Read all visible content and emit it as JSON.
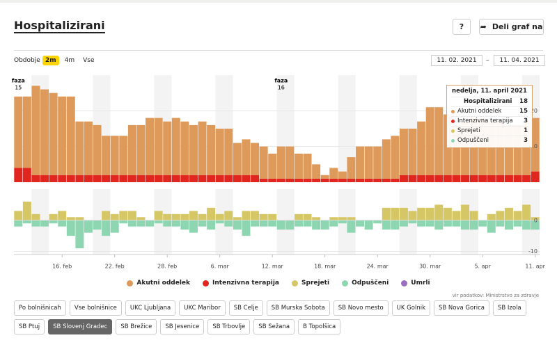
{
  "header": {
    "title": "Hospitalizirani",
    "help": "?",
    "share": "Deli graf na"
  },
  "controls": {
    "period_label": "Obdobje",
    "periods": [
      "2m",
      "4m",
      "Vse"
    ],
    "active_period": "2m",
    "date_from": "11. 02. 2021",
    "date_sep": "–",
    "date_to": "11. 04. 2021"
  },
  "chart_data": [
    {
      "type": "bar",
      "stacked": true,
      "ylim": [
        0,
        30
      ],
      "yticks": [
        10,
        20
      ],
      "grid": true,
      "annotations": [
        {
          "text": "faza",
          "label": "15"
        },
        {
          "text": "faza",
          "label": "16"
        }
      ],
      "series": [
        {
          "name": "Akutni oddelek",
          "color": "#de9a5a",
          "values": [
            20,
            20,
            25,
            24,
            23,
            22,
            22,
            15,
            15,
            14,
            11,
            11,
            11,
            14,
            14,
            16,
            16,
            15,
            16,
            15,
            14,
            15,
            14,
            13,
            13,
            9,
            10,
            9,
            9,
            7,
            9,
            9,
            7,
            7,
            4,
            1,
            3,
            2,
            6,
            9,
            9,
            9,
            11,
            12,
            13,
            13,
            15,
            19,
            19,
            17,
            14,
            15,
            16,
            16,
            15,
            15,
            14,
            14,
            15,
            15
          ]
        },
        {
          "name": "Intenzivna terapija",
          "color": "#e1261f",
          "values": [
            4,
            4,
            2,
            2,
            2,
            2,
            2,
            2,
            2,
            2,
            2,
            2,
            2,
            2,
            2,
            2,
            2,
            2,
            2,
            2,
            2,
            2,
            2,
            2,
            2,
            2,
            2,
            2,
            1,
            1,
            1,
            1,
            1,
            1,
            1,
            1,
            1,
            1,
            1,
            1,
            1,
            1,
            1,
            1,
            2,
            2,
            2,
            2,
            2,
            2,
            2,
            2,
            2,
            2,
            2,
            2,
            2,
            2,
            2,
            3
          ]
        }
      ]
    },
    {
      "type": "bar",
      "stacked": false,
      "ylim": [
        -11,
        10
      ],
      "yticks": [
        0,
        -10
      ],
      "grid": true,
      "categories": [
        null,
        null,
        null,
        null,
        null,
        "16. feb",
        null,
        null,
        null,
        null,
        null,
        "22. feb",
        null,
        null,
        null,
        null,
        null,
        "28. feb",
        null,
        null,
        null,
        null,
        null,
        "6. mar",
        null,
        null,
        null,
        null,
        null,
        "12. mar",
        null,
        null,
        null,
        null,
        null,
        "18. mar",
        null,
        null,
        null,
        null,
        null,
        "24. mar",
        null,
        null,
        null,
        null,
        null,
        "30. mar",
        null,
        null,
        null,
        null,
        null,
        "5. apr",
        null,
        null,
        null,
        null,
        null,
        "11. apr"
      ],
      "series": [
        {
          "name": "Sprejeti",
          "color": "#d6c766",
          "values": [
            3,
            6,
            2,
            0,
            2,
            3,
            1,
            1,
            0,
            0,
            3,
            2,
            3,
            3,
            1,
            0,
            3,
            2,
            2,
            2,
            3,
            2,
            4,
            2,
            3,
            1,
            3,
            3,
            2,
            2,
            0,
            0,
            2,
            2,
            1,
            0,
            1,
            1,
            1,
            0,
            0,
            0,
            4,
            4,
            4,
            3,
            4,
            4,
            5,
            4,
            3,
            5,
            3,
            0,
            2,
            3,
            4,
            3,
            5,
            1
          ]
        },
        {
          "name": "Odpuščeni",
          "color": "#8dd6b1",
          "values": [
            -2,
            -1,
            -2,
            -2,
            -1,
            -2,
            -5,
            -9,
            -4,
            -3,
            -5,
            -4,
            -1,
            -2,
            -2,
            -2,
            -1,
            -2,
            -2,
            -3,
            -4,
            -2,
            -3,
            -1,
            -2,
            -3,
            -5,
            -2,
            -2,
            -2,
            -3,
            -3,
            -2,
            -2,
            -3,
            -3,
            -2,
            -1,
            -4,
            -2,
            -3,
            -1,
            -3,
            -3,
            -2,
            -1,
            -2,
            -2,
            -3,
            -2,
            -2,
            -3,
            -3,
            -2,
            -4,
            -2,
            -3,
            -2,
            -3,
            -3
          ]
        },
        {
          "name": "Umrli",
          "color": "#9b6fbf",
          "values": [
            0,
            0,
            0,
            0,
            0,
            0,
            0,
            0,
            0,
            0,
            0,
            0,
            0,
            0,
            0,
            0,
            0,
            0,
            0,
            0,
            0,
            0,
            0,
            0,
            0,
            0,
            0,
            0,
            0,
            0,
            0,
            0,
            0,
            0,
            0,
            0,
            0,
            0,
            0,
            0,
            0,
            0,
            0,
            0,
            0,
            0,
            0,
            0,
            0,
            0,
            0,
            0,
            0,
            0,
            0,
            0,
            0,
            0,
            0,
            0
          ]
        }
      ]
    }
  ],
  "tooltip": {
    "title": "nedelja, 11. april 2021",
    "rows": [
      {
        "label": "Hospitalizirani",
        "value": 18
      },
      {
        "label": "Akutni oddelek",
        "value": 15
      },
      {
        "label": "Intenzivna terapija",
        "value": 3
      },
      {
        "label": "Sprejeti",
        "value": 1
      },
      {
        "label": "Odpuščeni",
        "value": 3
      }
    ]
  },
  "source": "vir podatkov: Ministrstvo za zdravje",
  "filters": {
    "items": [
      "Po bolnišnicah",
      "Vse bolnišnice",
      "UKC Ljubljana",
      "UKC Maribor",
      "SB Celje",
      "SB Murska Sobota",
      "SB Novo mesto",
      "UK Golnik",
      "SB Nova Gorica",
      "SB Izola",
      "SB Ptuj",
      "SB Slovenj Gradec",
      "SB Brežice",
      "SB Jesenice",
      "SB Trbovlje",
      "SB Sežana",
      "B Topolšica"
    ],
    "active": "SB Slovenj Gradec"
  }
}
